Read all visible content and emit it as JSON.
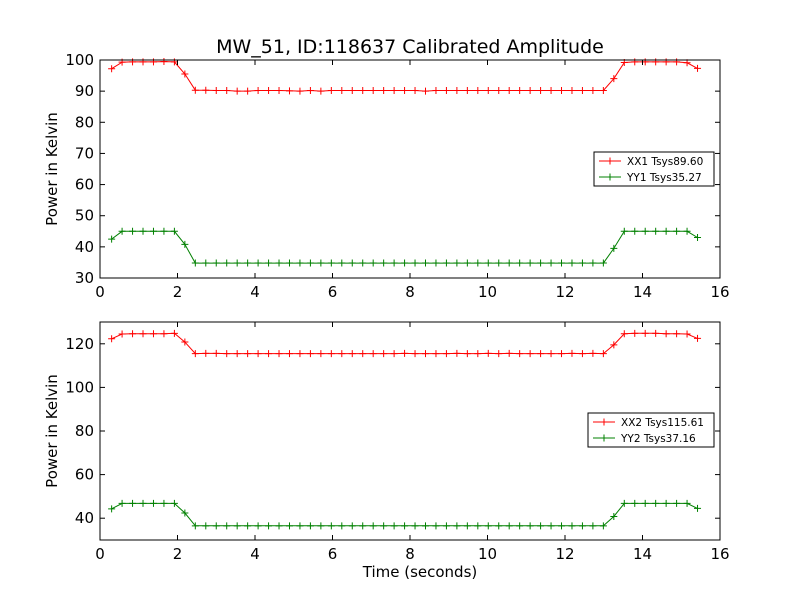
{
  "figure": {
    "title": "MW_51, ID:118637 Calibrated Amplitude"
  },
  "colors": {
    "XX": "#ff0000",
    "YY": "#008000",
    "axes": "#000000",
    "background": "#ffffff"
  },
  "chart_data": [
    {
      "type": "line",
      "title": "MW_51, ID:118637 Calibrated Amplitude",
      "xlabel": "",
      "ylabel": "Power in Kelvin",
      "xlim": [
        0,
        16
      ],
      "ylim": [
        30,
        100
      ],
      "xticks": [
        0,
        2,
        4,
        6,
        8,
        10,
        12,
        14,
        16
      ],
      "yticks": [
        30,
        40,
        50,
        60,
        70,
        80,
        90,
        100
      ],
      "legend_position": "center-right",
      "grid": false,
      "x": [
        0.3,
        0.57,
        0.84,
        1.11,
        1.38,
        1.65,
        1.92,
        2.19,
        2.46,
        2.73,
        3.0,
        3.27,
        3.54,
        3.81,
        4.08,
        4.35,
        4.62,
        4.89,
        5.16,
        5.43,
        5.7,
        5.97,
        6.24,
        6.51,
        6.78,
        7.05,
        7.32,
        7.59,
        7.86,
        8.13,
        8.4,
        8.67,
        8.94,
        9.21,
        9.48,
        9.75,
        10.02,
        10.29,
        10.56,
        10.83,
        11.1,
        11.37,
        11.64,
        11.91,
        12.18,
        12.45,
        12.72,
        12.99,
        13.26,
        13.53,
        13.8,
        14.07,
        14.34,
        14.61,
        14.88,
        15.15,
        15.42
      ],
      "series": [
        {
          "name": "XX1 Tsys89.60",
          "color": "#ff0000",
          "values": [
            97.2,
            99.3,
            99.4,
            99.4,
            99.4,
            99.5,
            99.4,
            95.5,
            90.3,
            90.3,
            90.2,
            90.2,
            90.0,
            90.0,
            90.2,
            90.2,
            90.2,
            90.1,
            90.0,
            90.2,
            90.0,
            90.2,
            90.2,
            90.2,
            90.2,
            90.2,
            90.2,
            90.2,
            90.2,
            90.2,
            90.0,
            90.2,
            90.2,
            90.2,
            90.2,
            90.2,
            90.2,
            90.2,
            90.2,
            90.2,
            90.2,
            90.2,
            90.2,
            90.2,
            90.2,
            90.2,
            90.2,
            90.2,
            94.0,
            99.2,
            99.4,
            99.4,
            99.4,
            99.4,
            99.4,
            99.1,
            97.3
          ]
        },
        {
          "name": "YY1 Tsys35.27",
          "color": "#008000",
          "values": [
            42.5,
            45.0,
            45.0,
            45.0,
            45.0,
            45.0,
            45.0,
            40.8,
            34.8,
            34.8,
            34.8,
            34.8,
            34.8,
            34.8,
            34.8,
            34.8,
            34.8,
            34.8,
            34.8,
            34.8,
            34.8,
            34.8,
            34.8,
            34.8,
            34.8,
            34.8,
            34.8,
            34.8,
            34.8,
            34.8,
            34.8,
            34.8,
            34.8,
            34.8,
            34.8,
            34.8,
            34.8,
            34.8,
            34.8,
            34.8,
            34.8,
            34.8,
            34.8,
            34.8,
            34.8,
            34.8,
            34.8,
            34.8,
            39.5,
            45.0,
            45.0,
            45.0,
            45.0,
            45.0,
            45.0,
            45.0,
            43.0
          ]
        }
      ]
    },
    {
      "type": "line",
      "title": "",
      "xlabel": "Time (seconds)",
      "ylabel": "Power in Kelvin",
      "xlim": [
        0,
        16
      ],
      "ylim": [
        30,
        130
      ],
      "xticks": [
        0,
        2,
        4,
        6,
        8,
        10,
        12,
        14,
        16
      ],
      "yticks": [
        40,
        60,
        80,
        100,
        120
      ],
      "legend_position": "center-right",
      "grid": false,
      "x": [
        0.3,
        0.57,
        0.84,
        1.11,
        1.38,
        1.65,
        1.92,
        2.19,
        2.46,
        2.73,
        3.0,
        3.27,
        3.54,
        3.81,
        4.08,
        4.35,
        4.62,
        4.89,
        5.16,
        5.43,
        5.7,
        5.97,
        6.24,
        6.51,
        6.78,
        7.05,
        7.32,
        7.59,
        7.86,
        8.13,
        8.4,
        8.67,
        8.94,
        9.21,
        9.48,
        9.75,
        10.02,
        10.29,
        10.56,
        10.83,
        11.1,
        11.37,
        11.64,
        11.91,
        12.18,
        12.45,
        12.72,
        12.99,
        13.26,
        13.53,
        13.8,
        14.07,
        14.34,
        14.61,
        14.88,
        15.15,
        15.42
      ],
      "series": [
        {
          "name": "XX2 Tsys115.61",
          "color": "#ff0000",
          "values": [
            122.3,
            124.5,
            124.6,
            124.6,
            124.6,
            124.6,
            124.8,
            120.8,
            115.5,
            115.6,
            115.6,
            115.5,
            115.5,
            115.5,
            115.5,
            115.5,
            115.5,
            115.5,
            115.5,
            115.5,
            115.5,
            115.5,
            115.5,
            115.5,
            115.5,
            115.5,
            115.5,
            115.5,
            115.6,
            115.5,
            115.5,
            115.5,
            115.5,
            115.6,
            115.5,
            115.5,
            115.6,
            115.5,
            115.6,
            115.5,
            115.5,
            115.5,
            115.5,
            115.5,
            115.6,
            115.5,
            115.6,
            115.5,
            119.5,
            124.6,
            124.8,
            124.8,
            124.8,
            124.6,
            124.6,
            124.5,
            122.5
          ]
        },
        {
          "name": "YY2 Tsys37.16",
          "color": "#008000",
          "values": [
            44.3,
            46.8,
            46.8,
            46.8,
            46.8,
            46.8,
            46.8,
            42.4,
            36.5,
            36.5,
            36.5,
            36.5,
            36.5,
            36.5,
            36.5,
            36.5,
            36.5,
            36.5,
            36.5,
            36.5,
            36.5,
            36.5,
            36.5,
            36.5,
            36.5,
            36.5,
            36.5,
            36.5,
            36.5,
            36.5,
            36.5,
            36.5,
            36.5,
            36.5,
            36.5,
            36.5,
            36.5,
            36.5,
            36.5,
            36.5,
            36.5,
            36.5,
            36.5,
            36.5,
            36.5,
            36.5,
            36.5,
            36.5,
            40.8,
            46.8,
            46.8,
            46.8,
            46.8,
            46.8,
            46.8,
            46.8,
            44.5
          ]
        }
      ]
    }
  ]
}
